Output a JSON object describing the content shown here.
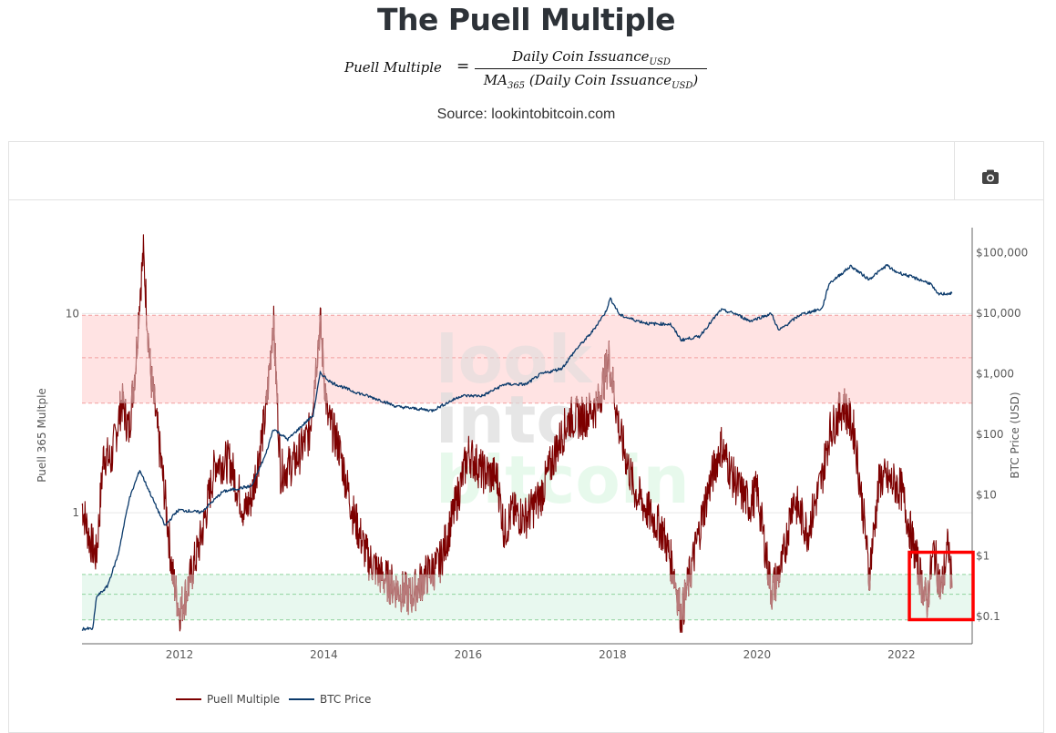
{
  "page": {
    "title": "The Puell Multiple",
    "formula": {
      "lhs": "Puell Multiple",
      "equals": "=",
      "numerator": "Daily Coin Issuance",
      "numerator_sub": "USD",
      "denominator_prefix": "MA",
      "denominator_prefix_sub": "365",
      "denominator_body": " (Daily Coin Issuance",
      "denominator_sub": "USD",
      "denominator_close": ")"
    },
    "source": "Source: lookintobitcoin.com"
  },
  "toolbar": {
    "camera_icon": "camera-icon",
    "camera_color": "#444444"
  },
  "watermark": {
    "line1": "look",
    "line2": "into",
    "line3": "bitcoin"
  },
  "chart_data": {
    "type": "line",
    "title": "",
    "xlabel": "",
    "ylabel": "Puell 365 Multple",
    "y2label": "BTC Price (USD)",
    "xlim": [
      2010.65,
      2022.98
    ],
    "ylim": [
      0.22,
      27
    ],
    "y2lim": [
      0.034,
      250000
    ],
    "yscale": "log",
    "y2scale": "log",
    "x_ticks": [
      2012,
      2014,
      2016,
      2018,
      2020,
      2022
    ],
    "x_tick_labels": [
      "2012",
      "2014",
      "2016",
      "2018",
      "2020",
      "2022"
    ],
    "y_ticks": [
      1,
      10
    ],
    "y_tick_labels": [
      "1",
      "10"
    ],
    "y2_ticks": [
      0.1,
      1,
      10,
      100,
      1000,
      10000,
      100000
    ],
    "y2_tick_labels": [
      "$0.1",
      "$1",
      "$10",
      "$100",
      "$1,000",
      "$10,000",
      "$100,000"
    ],
    "bands": [
      {
        "name": "overvalued-zone",
        "from": 3.55,
        "to": 9.8,
        "lines": [
          3.55,
          6.0,
          9.8
        ],
        "color": "#ffe3e3",
        "line_color": "#f2a0a0"
      },
      {
        "name": "undervalued-zone",
        "from": 0.29,
        "to": 0.49,
        "lines": [
          0.29,
          0.39,
          0.49
        ],
        "color": "#e8f8ef",
        "line_color": "#8fd39e"
      }
    ],
    "highlight_box": {
      "x_from": 2022.11,
      "x_to": 2023.0,
      "y2_from": 0.085,
      "y2_to": 1.1,
      "color": "#ff0000"
    },
    "legend": {
      "position": "bottom",
      "entries": [
        "Puell Multiple",
        "BTC Price"
      ]
    },
    "series": [
      {
        "name": "Puell Multiple",
        "axis": "y",
        "color": "#7d0000",
        "x": [
          2010.65,
          2010.75,
          2010.85,
          2010.95,
          2011.05,
          2011.2,
          2011.3,
          2011.4,
          2011.45,
          2011.5,
          2011.6,
          2011.7,
          2011.8,
          2011.9,
          2012.0,
          2012.1,
          2012.3,
          2012.5,
          2012.7,
          2012.9,
          2013.0,
          2013.2,
          2013.3,
          2013.4,
          2013.6,
          2013.8,
          2013.9,
          2013.95,
          2014.05,
          2014.2,
          2014.4,
          2014.6,
          2014.8,
          2015.0,
          2015.2,
          2015.4,
          2015.6,
          2015.8,
          2016.0,
          2016.2,
          2016.4,
          2016.5,
          2016.6,
          2016.8,
          2017.0,
          2017.2,
          2017.4,
          2017.6,
          2017.8,
          2017.95,
          2018.1,
          2018.3,
          2018.5,
          2018.7,
          2018.85,
          2018.95,
          2019.1,
          2019.3,
          2019.5,
          2019.7,
          2019.9,
          2020.0,
          2020.2,
          2020.35,
          2020.5,
          2020.7,
          2020.9,
          2021.0,
          2021.2,
          2021.35,
          2021.5,
          2021.55,
          2021.7,
          2021.9,
          2022.0,
          2022.2,
          2022.35,
          2022.45,
          2022.55,
          2022.65,
          2022.7
        ],
        "values": [
          1.1,
          0.75,
          0.6,
          2.0,
          1.8,
          3.6,
          2.6,
          6.0,
          12.5,
          20.0,
          5.0,
          2.5,
          1.2,
          0.5,
          0.32,
          0.4,
          0.75,
          1.8,
          1.8,
          1.0,
          1.2,
          3.2,
          9.5,
          1.6,
          1.8,
          2.5,
          6.0,
          9.0,
          3.0,
          2.2,
          1.0,
          0.6,
          0.48,
          0.42,
          0.38,
          0.48,
          0.55,
          1.0,
          2.0,
          1.6,
          1.5,
          0.8,
          1.0,
          0.95,
          1.2,
          2.0,
          3.0,
          3.0,
          3.5,
          6.0,
          2.5,
          1.3,
          1.0,
          0.8,
          0.5,
          0.3,
          0.55,
          1.2,
          2.2,
          1.4,
          1.1,
          1.3,
          0.4,
          0.55,
          1.2,
          0.8,
          1.5,
          2.5,
          3.5,
          2.5,
          0.8,
          0.48,
          1.5,
          1.4,
          1.3,
          0.6,
          0.35,
          0.65,
          0.4,
          0.7,
          0.42
        ]
      },
      {
        "name": "BTC Price",
        "axis": "y2",
        "color": "#0b3a6b",
        "x": [
          2010.65,
          2010.8,
          2010.85,
          2011.0,
          2011.15,
          2011.3,
          2011.45,
          2011.6,
          2011.8,
          2011.95,
          2012.0,
          2012.3,
          2012.6,
          2012.9,
          2013.0,
          2013.2,
          2013.3,
          2013.5,
          2013.85,
          2013.95,
          2014.1,
          2014.4,
          2014.8,
          2015.0,
          2015.5,
          2015.9,
          2016.2,
          2016.5,
          2016.8,
          2017.0,
          2017.3,
          2017.5,
          2017.7,
          2017.9,
          2017.97,
          2018.1,
          2018.3,
          2018.5,
          2018.8,
          2018.95,
          2019.2,
          2019.5,
          2019.7,
          2019.9,
          2020.2,
          2020.3,
          2020.6,
          2020.9,
          2021.0,
          2021.3,
          2021.55,
          2021.8,
          2021.9,
          2022.1,
          2022.4,
          2022.5,
          2022.7
        ],
        "values": [
          0.06,
          0.06,
          0.2,
          0.3,
          1.0,
          8.0,
          25.0,
          10.0,
          3.0,
          5.0,
          5.5,
          5.0,
          11.0,
          13.0,
          13.5,
          47.0,
          120.0,
          80.0,
          200.0,
          1000.0,
          700.0,
          500.0,
          350.0,
          280.0,
          240.0,
          420.0,
          420.0,
          650.0,
          650.0,
          950.0,
          1200.0,
          2500.0,
          4500.0,
          10000.0,
          17000.0,
          9000.0,
          7500.0,
          6500.0,
          6400.0,
          3500.0,
          4000.0,
          11000.0,
          9500.0,
          7200.0,
          9500.0,
          5000.0,
          9200.0,
          11500.0,
          30000.0,
          58000.0,
          35000.0,
          60000.0,
          48000.0,
          40000.0,
          30000.0,
          20000.0,
          20500.0
        ]
      }
    ]
  }
}
